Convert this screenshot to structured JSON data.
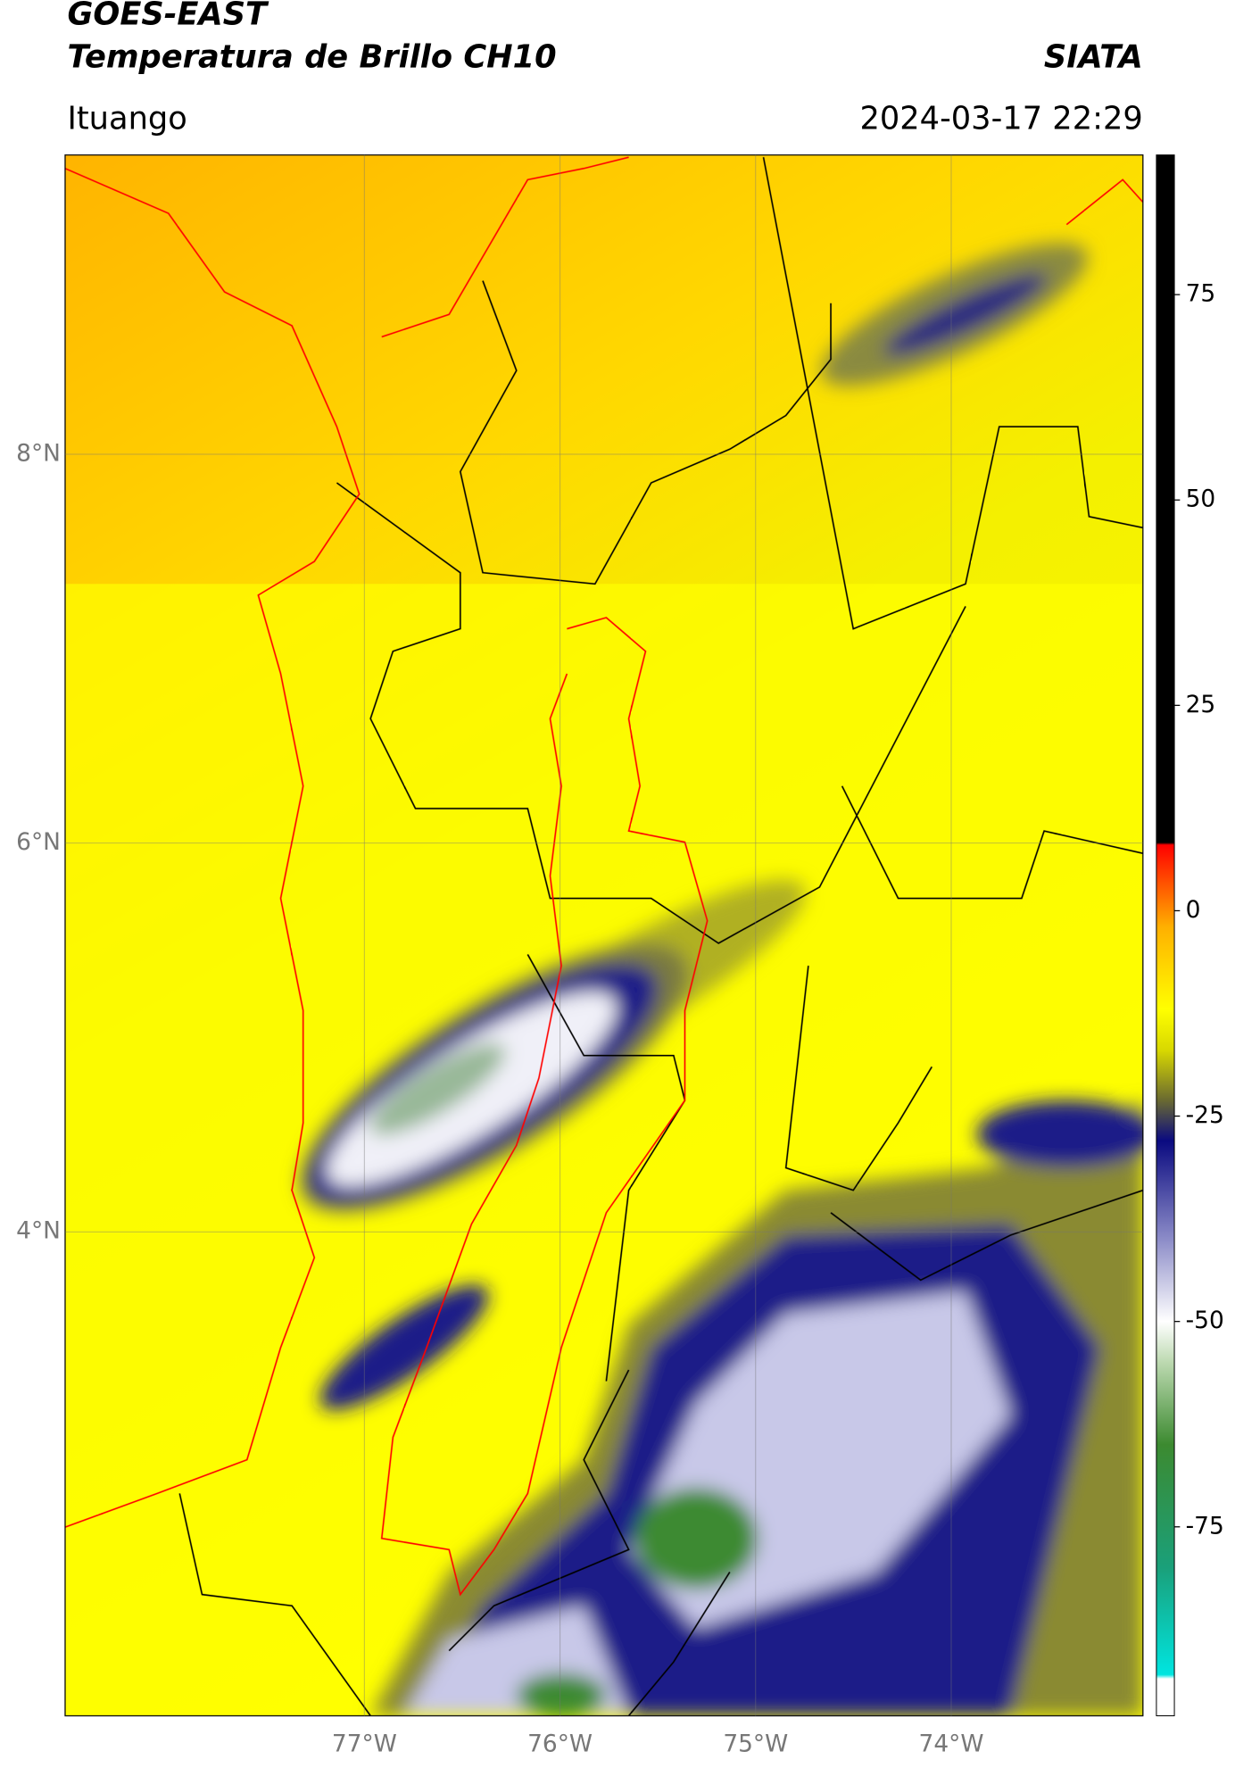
{
  "chart_data": {
    "type": "map",
    "title": "GOES-EAST",
    "subtitle": "Temperatura de Brillo CH10",
    "source": "SIATA",
    "region": "Ituango",
    "timestamp": "2024-03-17 22:29",
    "xlim": [
      -78.53,
      -73.02
    ],
    "ylim": [
      1.51,
      9.54
    ],
    "xticks": [
      {
        "value": -77,
        "label": "77°W"
      },
      {
        "value": -76,
        "label": "76°W"
      },
      {
        "value": -75,
        "label": "75°W"
      },
      {
        "value": -74,
        "label": "74°W"
      }
    ],
    "yticks": [
      {
        "value": 4,
        "label": "4°N"
      },
      {
        "value": 6,
        "label": "6°N"
      },
      {
        "value": 8,
        "label": "8°N"
      }
    ],
    "grid": true,
    "colorbar": {
      "lim": [
        -98,
        92
      ],
      "ticks": [
        75,
        50,
        25,
        0,
        -25,
        -50,
        -75
      ],
      "stops": [
        {
          "value": -98,
          "color": "#ffffff"
        },
        {
          "value": -93.5,
          "color": "#ffffff"
        },
        {
          "value": -93,
          "color": "#00e5e0"
        },
        {
          "value": -80,
          "color": "#1aa07a"
        },
        {
          "value": -65,
          "color": "#3c8a30"
        },
        {
          "value": -55,
          "color": "#bcd9b0"
        },
        {
          "value": -50,
          "color": "#ffffff"
        },
        {
          "value": -40,
          "color": "#8c8cc8"
        },
        {
          "value": -28,
          "color": "#0a0a80"
        },
        {
          "value": -23,
          "color": "#6b6b30"
        },
        {
          "value": -17,
          "color": "#d8d800"
        },
        {
          "value": -12,
          "color": "#ffff00"
        },
        {
          "value": -2,
          "color": "#ffb000"
        },
        {
          "value": 8,
          "color": "#ff0000"
        },
        {
          "value": 8.3,
          "color": "#000000"
        },
        {
          "value": 92,
          "color": "#000000"
        }
      ]
    }
  }
}
